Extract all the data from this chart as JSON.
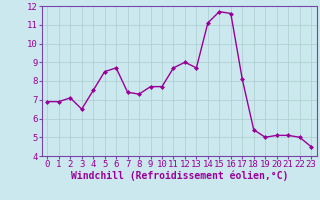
{
  "x": [
    0,
    1,
    2,
    3,
    4,
    5,
    6,
    7,
    8,
    9,
    10,
    11,
    12,
    13,
    14,
    15,
    16,
    17,
    18,
    19,
    20,
    21,
    22,
    23
  ],
  "y": [
    6.9,
    6.9,
    7.1,
    6.5,
    7.5,
    8.5,
    8.7,
    7.4,
    7.3,
    7.7,
    7.7,
    8.7,
    9.0,
    8.7,
    11.1,
    11.7,
    11.6,
    8.1,
    5.4,
    5.0,
    5.1,
    5.1,
    5.0,
    4.5
  ],
  "line_color": "#990099",
  "marker": "D",
  "marker_size": 2.0,
  "bg_color": "#cce8ef",
  "grid_color": "#aacccc",
  "xlabel": "Windchill (Refroidissement éolien,°C)",
  "ylim": [
    4,
    12
  ],
  "xlim_min": -0.5,
  "xlim_max": 23.5,
  "yticks": [
    4,
    5,
    6,
    7,
    8,
    9,
    10,
    11,
    12
  ],
  "xticks": [
    0,
    1,
    2,
    3,
    4,
    5,
    6,
    7,
    8,
    9,
    10,
    11,
    12,
    13,
    14,
    15,
    16,
    17,
    18,
    19,
    20,
    21,
    22,
    23
  ],
  "tick_label_size": 6.5,
  "xlabel_size": 7.0,
  "line_width": 1.0,
  "spine_color": "#7744aa"
}
